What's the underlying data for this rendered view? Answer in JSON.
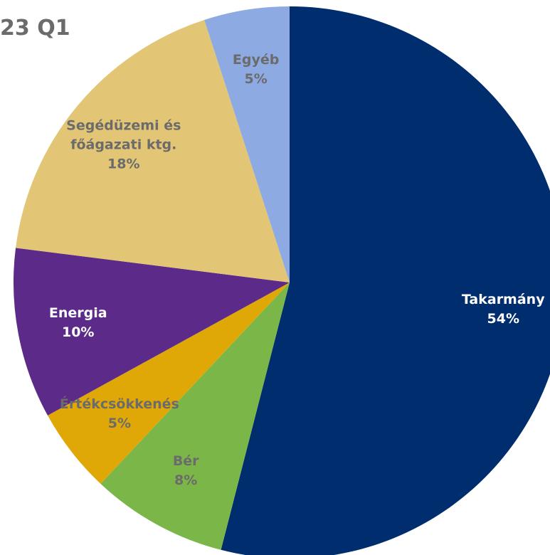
{
  "chart_data": {
    "type": "pie",
    "title": "23 Q1",
    "categories": [
      "Takarmány",
      "Bér",
      "Értékcsökkenés",
      "Energia",
      "Segédüzemi és főágazati ktg.",
      "Egyéb"
    ],
    "values": [
      54,
      8,
      5,
      10,
      18,
      5
    ],
    "value_labels": [
      "54%",
      "8%",
      "5%",
      "10%",
      "18%",
      "5%"
    ],
    "colors": [
      "#002d6e",
      "#7ab648",
      "#e0a806",
      "#5c2a88",
      "#e2c676",
      "#8eaae2"
    ]
  }
}
